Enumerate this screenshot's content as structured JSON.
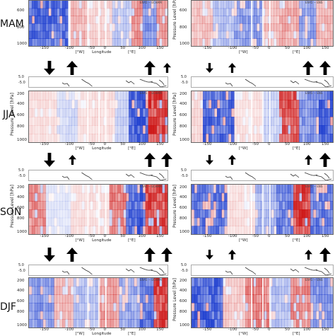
{
  "figure": {
    "seasons": [
      "MAM",
      "JJA",
      "SON",
      "DJF"
    ],
    "y_axis_label": "Pressure Level [hPa]",
    "y_ticks": [
      "200",
      "400",
      "600",
      "800",
      "1000"
    ],
    "x_axis_label": "Longitude",
    "x_ticks": [
      "-150",
      "-100",
      "-50",
      "0",
      "50",
      "100",
      "150"
    ],
    "x_unit_west": "[°W]",
    "x_unit_east": "[°E]",
    "map_lat_ticks": [
      "5.0",
      "-5.0"
    ],
    "corner_labels": [
      "ERA5 − ECHAM",
      "ERA5 − ENS"
    ],
    "colors": {
      "positive": "#cc1111",
      "negative": "#1133cc",
      "neutral": "#ffffff"
    }
  },
  "arrow_rows": [
    {
      "left": [
        "down-big",
        "up-big",
        "up-big",
        "up-small"
      ],
      "right": [
        "down-small",
        "up-small",
        "up-big",
        "up-big"
      ]
    },
    {
      "left": [
        "down-big",
        "up-small",
        "up-big",
        "up-big"
      ],
      "right": [
        "down-small",
        "up-small",
        "up-small",
        "up-big"
      ]
    },
    {
      "left": [
        "down-big",
        "up-big",
        "up-big",
        "up-big"
      ],
      "right": [
        "down-small",
        "up-small",
        "up-small",
        "up-big"
      ]
    }
  ],
  "map_icons": {
    "left": "coastline-map-icon",
    "right": "coastline-map-icon"
  }
}
